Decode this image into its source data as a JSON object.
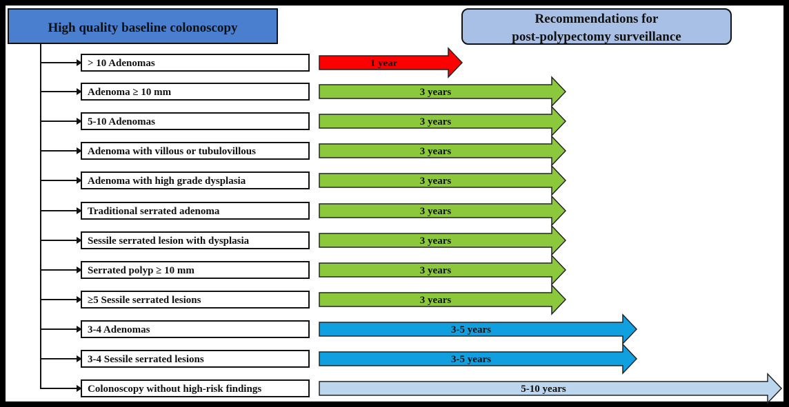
{
  "baseline": {
    "title": "High quality baseline colonoscopy",
    "fill": "#4a7fd0"
  },
  "recommendations": {
    "line1": "Recommendations for",
    "line2": "post-polypectomy surveillance",
    "fill": "#a8bfe6"
  },
  "findings": [
    {
      "label": "> 10 Adenomas",
      "interval": "1 year",
      "color": "#ff0000"
    },
    {
      "label": "Adenoma ≥ 10 mm",
      "interval": "3 years",
      "color": "#8cc83c"
    },
    {
      "label": "5-10 Adenomas",
      "interval": "3 years",
      "color": "#8cc83c"
    },
    {
      "label": "Adenoma with villous or tubulovillous",
      "interval": "3 years",
      "color": "#8cc83c"
    },
    {
      "label": "Adenoma with high grade dysplasia",
      "interval": "3 years",
      "color": "#8cc83c"
    },
    {
      "label": "Traditional serrated adenoma",
      "interval": "3 years",
      "color": "#8cc83c"
    },
    {
      "label": "Sessile serrated lesion with dysplasia",
      "interval": "3 years",
      "color": "#8cc83c"
    },
    {
      "label": "Serrated polyp ≥ 10 mm",
      "interval": "3 years",
      "color": "#8cc83c"
    },
    {
      "label": "≥5 Sessile serrated lesions",
      "interval": "3 years",
      "color": "#8cc83c"
    },
    {
      "label": "3-4 Adenomas",
      "interval": "3-5 years",
      "color": "#10a0e0"
    },
    {
      "label": "3-4 Sessile serrated lesions",
      "interval": "3-5 years",
      "color": "#10a0e0"
    },
    {
      "label": "Colonoscopy without high-risk findings",
      "interval": "5-10 years",
      "color": "#bcd6ee"
    }
  ]
}
